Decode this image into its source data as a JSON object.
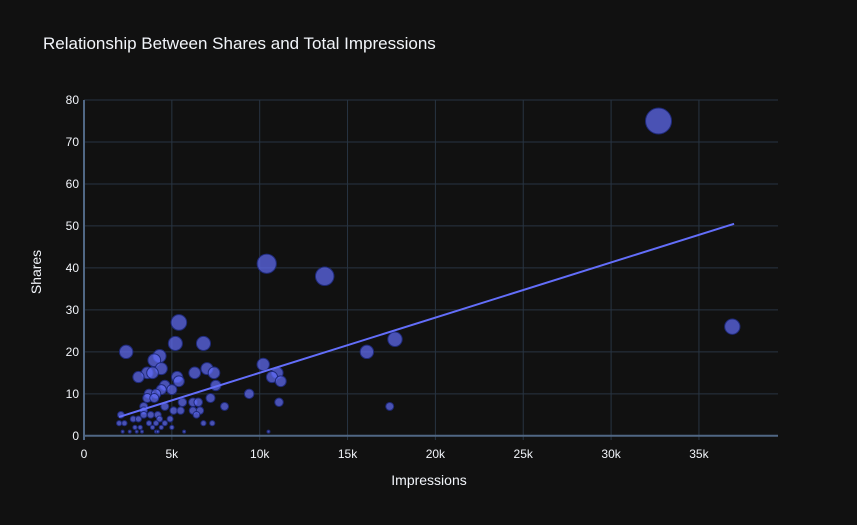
{
  "chart_data": {
    "type": "scatter",
    "title": "Relationship Between Shares and Total Impressions",
    "xlabel": "Impressions",
    "ylabel": "Shares",
    "xlim": [
      0,
      39500
    ],
    "ylim": [
      -1,
      80
    ],
    "x_ticks": [
      0,
      5000,
      10000,
      15000,
      20000,
      25000,
      30000,
      35000
    ],
    "x_tick_labels": [
      "0",
      "5k",
      "10k",
      "15k",
      "20k",
      "25k",
      "30k",
      "35k"
    ],
    "y_ticks": [
      0,
      10,
      20,
      30,
      40,
      50,
      60,
      70,
      80
    ],
    "y_tick_labels": [
      "0",
      "10",
      "20",
      "30",
      "40",
      "50",
      "60",
      "70",
      "80"
    ],
    "grid": true,
    "marker_color": "#636efa",
    "trendline_color": "#636efa",
    "trendline": {
      "x": [
        2000,
        37000
      ],
      "y": [
        4.5,
        50.5
      ]
    },
    "points": [
      {
        "x": 32700,
        "y": 75
      },
      {
        "x": 36900,
        "y": 26
      },
      {
        "x": 10400,
        "y": 41
      },
      {
        "x": 13700,
        "y": 38
      },
      {
        "x": 5400,
        "y": 27
      },
      {
        "x": 17700,
        "y": 23
      },
      {
        "x": 16100,
        "y": 20
      },
      {
        "x": 5200,
        "y": 22
      },
      {
        "x": 6800,
        "y": 22
      },
      {
        "x": 2400,
        "y": 20
      },
      {
        "x": 4300,
        "y": 19
      },
      {
        "x": 4000,
        "y": 18
      },
      {
        "x": 10200,
        "y": 17
      },
      {
        "x": 4400,
        "y": 16
      },
      {
        "x": 7000,
        "y": 16
      },
      {
        "x": 6300,
        "y": 15
      },
      {
        "x": 7400,
        "y": 15
      },
      {
        "x": 10700,
        "y": 14
      },
      {
        "x": 11000,
        "y": 15
      },
      {
        "x": 3100,
        "y": 14
      },
      {
        "x": 3600,
        "y": 15
      },
      {
        "x": 3900,
        "y": 15
      },
      {
        "x": 5300,
        "y": 14
      },
      {
        "x": 5400,
        "y": 13
      },
      {
        "x": 11200,
        "y": 13
      },
      {
        "x": 4600,
        "y": 12
      },
      {
        "x": 7500,
        "y": 12
      },
      {
        "x": 4400,
        "y": 11
      },
      {
        "x": 5000,
        "y": 11
      },
      {
        "x": 3700,
        "y": 10
      },
      {
        "x": 4100,
        "y": 10
      },
      {
        "x": 9400,
        "y": 10
      },
      {
        "x": 3600,
        "y": 9
      },
      {
        "x": 4000,
        "y": 9
      },
      {
        "x": 7200,
        "y": 9
      },
      {
        "x": 5600,
        "y": 8
      },
      {
        "x": 6200,
        "y": 8
      },
      {
        "x": 6500,
        "y": 8
      },
      {
        "x": 11100,
        "y": 8
      },
      {
        "x": 3400,
        "y": 7
      },
      {
        "x": 4600,
        "y": 7
      },
      {
        "x": 8000,
        "y": 7
      },
      {
        "x": 17400,
        "y": 7
      },
      {
        "x": 3400,
        "y": 6
      },
      {
        "x": 5100,
        "y": 6
      },
      {
        "x": 5500,
        "y": 6
      },
      {
        "x": 6200,
        "y": 6
      },
      {
        "x": 6600,
        "y": 6
      },
      {
        "x": 2100,
        "y": 5
      },
      {
        "x": 3400,
        "y": 5
      },
      {
        "x": 3800,
        "y": 5
      },
      {
        "x": 4200,
        "y": 5
      },
      {
        "x": 6400,
        "y": 5
      },
      {
        "x": 2800,
        "y": 4
      },
      {
        "x": 3100,
        "y": 4
      },
      {
        "x": 4300,
        "y": 4
      },
      {
        "x": 4900,
        "y": 4
      },
      {
        "x": 2000,
        "y": 3
      },
      {
        "x": 2300,
        "y": 3
      },
      {
        "x": 3700,
        "y": 3
      },
      {
        "x": 4100,
        "y": 3
      },
      {
        "x": 4600,
        "y": 3
      },
      {
        "x": 6800,
        "y": 3
      },
      {
        "x": 7300,
        "y": 3
      },
      {
        "x": 2900,
        "y": 2
      },
      {
        "x": 3200,
        "y": 2
      },
      {
        "x": 3900,
        "y": 2
      },
      {
        "x": 4400,
        "y": 2
      },
      {
        "x": 5000,
        "y": 2
      },
      {
        "x": 2200,
        "y": 1
      },
      {
        "x": 2600,
        "y": 1
      },
      {
        "x": 3000,
        "y": 1
      },
      {
        "x": 3300,
        "y": 1
      },
      {
        "x": 4100,
        "y": 1
      },
      {
        "x": 4200,
        "y": 1
      },
      {
        "x": 5700,
        "y": 1
      },
      {
        "x": 10500,
        "y": 1
      }
    ]
  }
}
